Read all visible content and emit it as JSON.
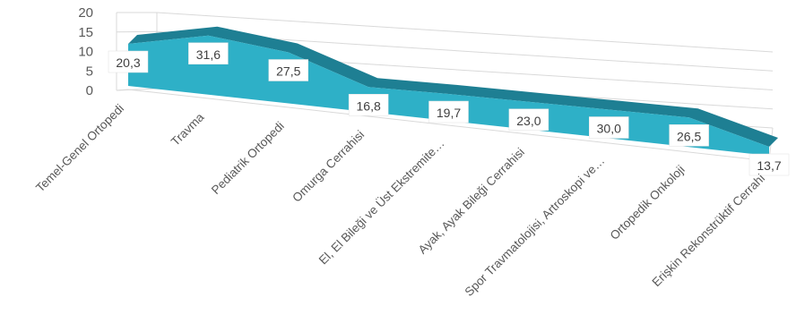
{
  "chart_data": {
    "type": "area",
    "categories": [
      "Temel-Genel Ortopedi",
      "Travma",
      "Pediatrik Ortopedi",
      "Omurga Cerrahisi",
      "El, El Bileği ve Üst Ekstremite…",
      "Ayak, Ayak Bileği Cerrahisi",
      "Spor Travmatolojisi, Artroskopi ve…",
      "Ortopedik Onkoloji",
      "Erişkin Rekonstrüktif Cerrahi"
    ],
    "values": [
      20.3,
      31.6,
      27.5,
      16.8,
      19.7,
      23.0,
      30.0,
      26.5,
      13.7
    ],
    "data_labels": [
      "20,3",
      "31,6",
      "27,5",
      "16,8",
      "19,7",
      "23,0",
      "30,0",
      "26,5",
      "13,7"
    ],
    "y_ticks": [
      "0",
      "5",
      "10",
      "15",
      "20"
    ],
    "ylim": [
      0,
      20
    ],
    "grid": true,
    "style": "3d-area",
    "colors": {
      "front": "#2eb0c7",
      "top": "#1e7f93",
      "grid": "#d9d9d9",
      "text": "#595959"
    }
  }
}
